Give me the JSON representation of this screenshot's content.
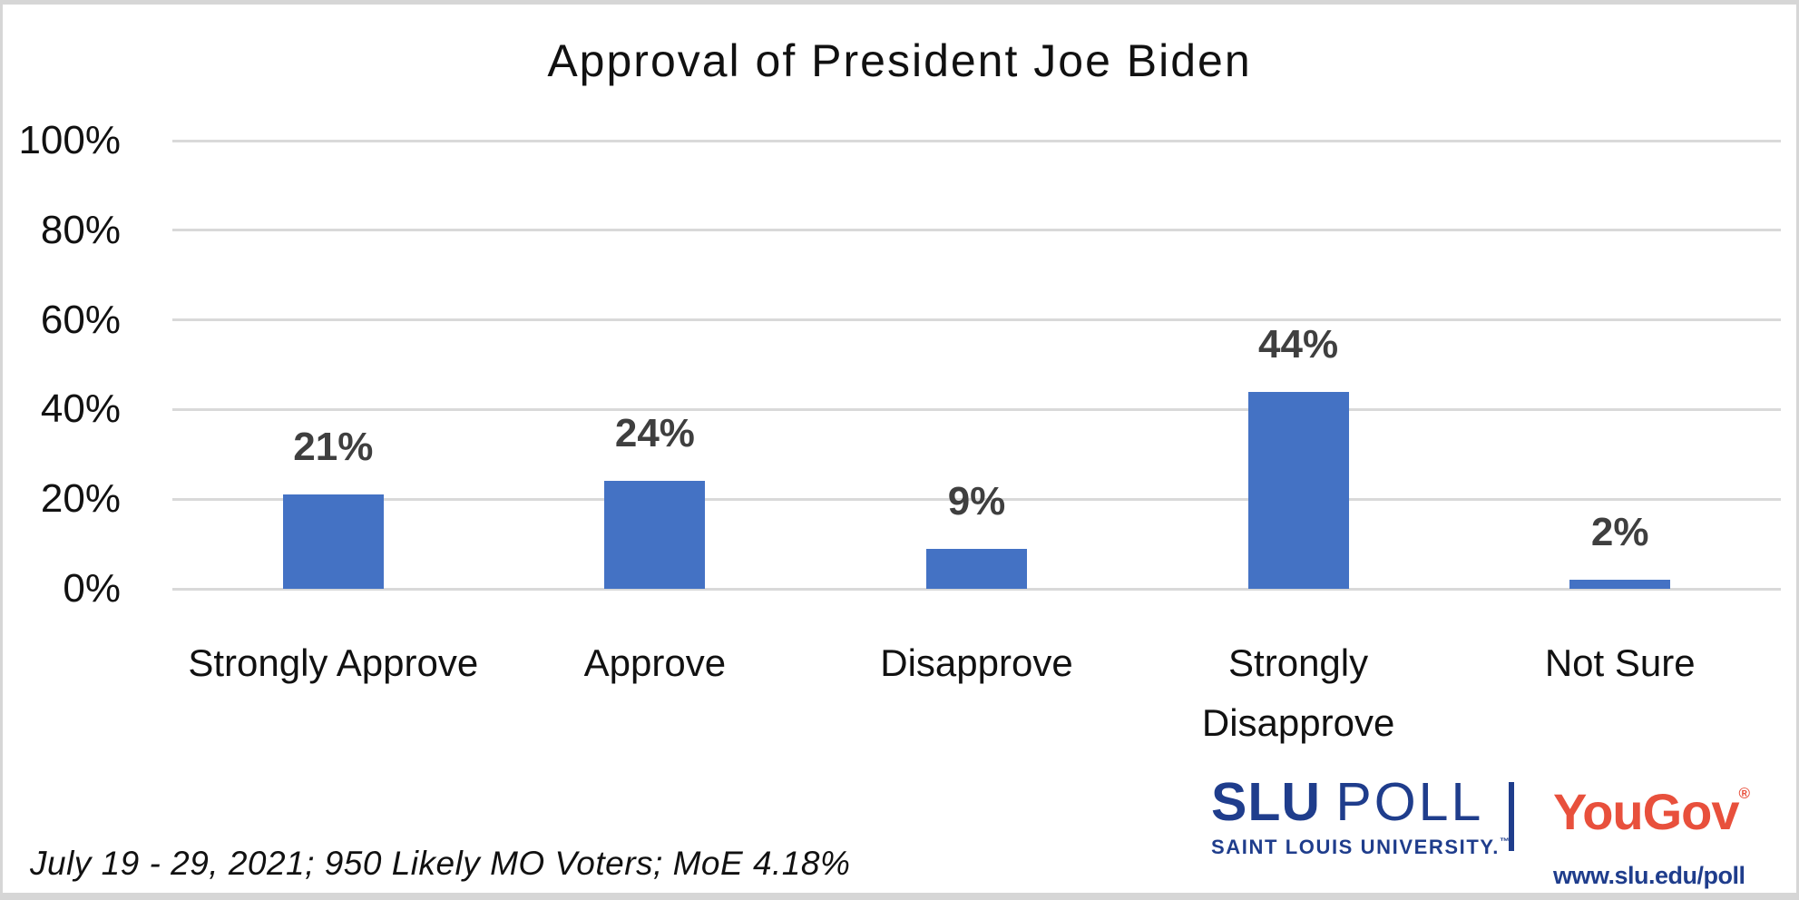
{
  "chart_data": {
    "type": "bar",
    "title": "Approval of President Joe Biden",
    "categories": [
      "Strongly Approve",
      "Approve",
      "Disapprove",
      "Strongly Disapprove",
      "Not Sure"
    ],
    "category_label_lines": [
      [
        "Strongly Approve"
      ],
      [
        "Approve"
      ],
      [
        "Disapprove"
      ],
      [
        "Strongly",
        "Disapprove"
      ],
      [
        "Not Sure"
      ]
    ],
    "values": [
      21,
      24,
      9,
      44,
      2
    ],
    "value_labels": [
      "21%",
      "24%",
      "9%",
      "44%",
      "2%"
    ],
    "y_ticks": [
      {
        "value": 0,
        "label": "0%"
      },
      {
        "value": 20,
        "label": "20%"
      },
      {
        "value": 40,
        "label": "40%"
      },
      {
        "value": 60,
        "label": "60%"
      },
      {
        "value": 80,
        "label": "80%"
      },
      {
        "value": 100,
        "label": "100%"
      }
    ],
    "ylim": [
      0,
      100
    ],
    "xlabel": "",
    "ylabel": "",
    "grid": true,
    "legend": "none",
    "bar_color": "#4472C4"
  },
  "footer": {
    "note": "July 19 - 29, 2021; 950 Likely MO Voters; MoE 4.18%"
  },
  "branding": {
    "slu_wordmark_part1": "SLU",
    "slu_wordmark_part2": "POLL",
    "slu_subtitle": "SAINT LOUIS UNIVERSITY.",
    "slu_trademark": "™",
    "yougov_name": "YouGov",
    "yougov_registered": "®",
    "url": "www.slu.edu/poll"
  },
  "colors": {
    "bar_blue": "#4472C4",
    "gridline_gray": "#D9D9D9",
    "value_label_gray": "#3F3F3F",
    "slu_blue": "#1F3D8C",
    "yougov_red": "#E8503C",
    "frame_gray": "#D6D6D6"
  }
}
